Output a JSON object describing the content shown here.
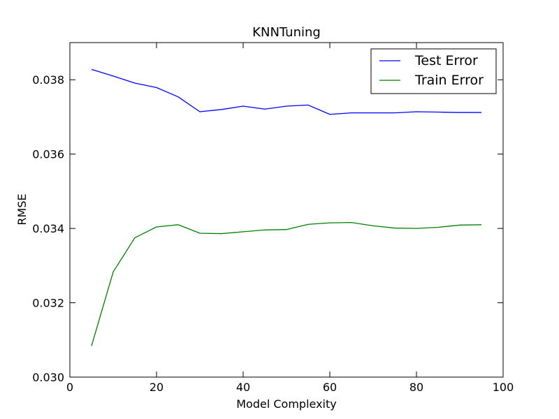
{
  "chart_data": {
    "type": "line",
    "title": "KNNTuning",
    "xlabel": "Model Complexity",
    "ylabel": "RMSE",
    "xlim": [
      0,
      100
    ],
    "ylim": [
      0.03,
      0.039
    ],
    "xticks": [
      0,
      20,
      40,
      60,
      80,
      100
    ],
    "xtick_labels": [
      "0",
      "20",
      "40",
      "60",
      "80",
      "100"
    ],
    "yticks": [
      0.03,
      0.032,
      0.034,
      0.036,
      0.038
    ],
    "ytick_labels": [
      "0.030",
      "0.032",
      "0.034",
      "0.036",
      "0.038"
    ],
    "grid": false,
    "legend_position": "top-right",
    "x": [
      5,
      10,
      15,
      20,
      25,
      30,
      35,
      40,
      45,
      50,
      55,
      60,
      65,
      70,
      75,
      80,
      85,
      90,
      95
    ],
    "series": [
      {
        "name": "Test Error",
        "color": "#0000ff",
        "values": [
          0.03828,
          0.0381,
          0.03791,
          0.03779,
          0.03754,
          0.03714,
          0.0372,
          0.03729,
          0.03721,
          0.03729,
          0.03732,
          0.03707,
          0.03711,
          0.03711,
          0.03711,
          0.03714,
          0.03713,
          0.03712,
          0.03712
        ]
      },
      {
        "name": "Train Error",
        "color": "#008000",
        "values": [
          0.03084,
          0.03283,
          0.03375,
          0.03404,
          0.0341,
          0.03387,
          0.03386,
          0.03391,
          0.03396,
          0.03397,
          0.03411,
          0.03415,
          0.03416,
          0.03407,
          0.03401,
          0.034,
          0.03403,
          0.03409,
          0.0341
        ]
      }
    ]
  }
}
